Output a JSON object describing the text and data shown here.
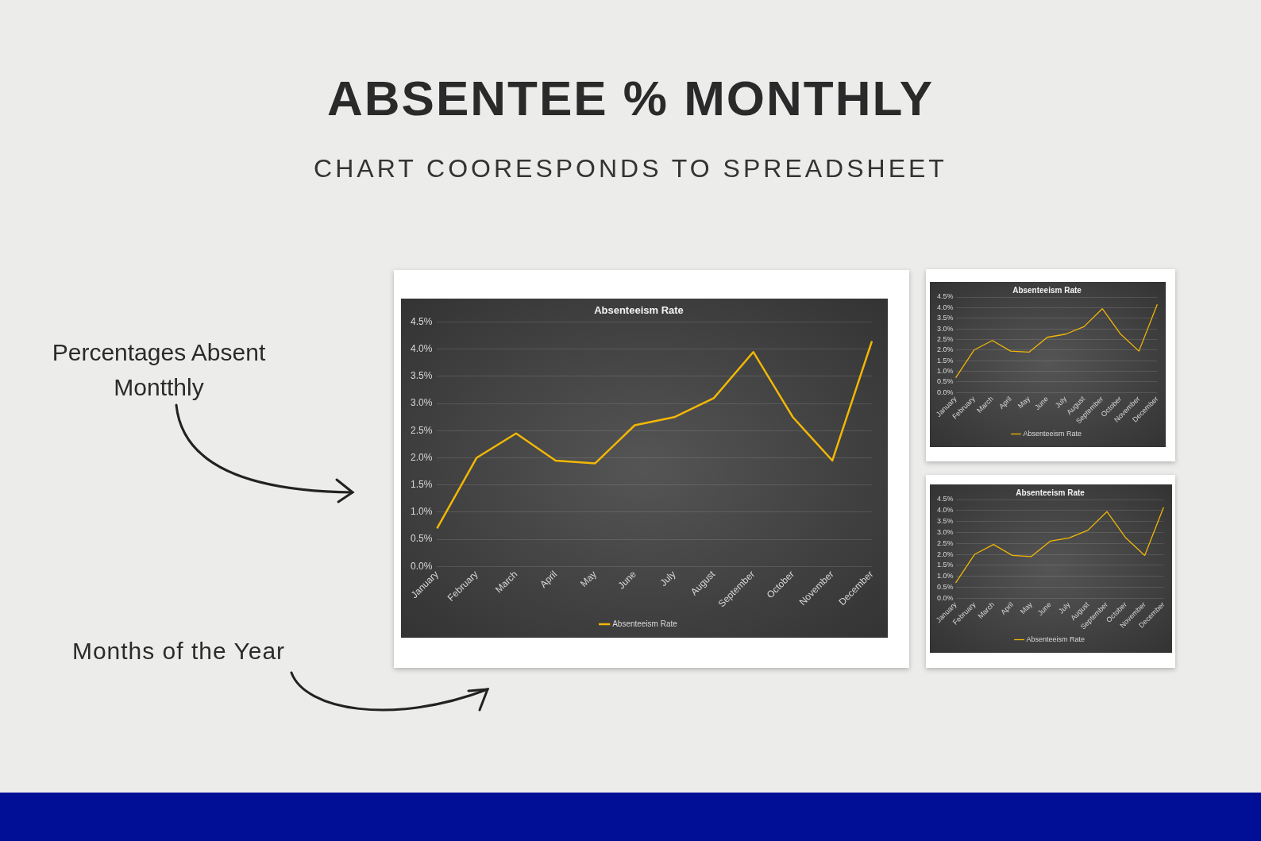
{
  "chart_data": [
    {
      "type": "line",
      "title": "Absenteeism Rate",
      "categories": [
        "January",
        "February",
        "March",
        "April",
        "May",
        "June",
        "July",
        "August",
        "September",
        "October",
        "November",
        "December"
      ],
      "series": [
        {
          "name": "Absenteeism Rate",
          "color": "#f2b705",
          "values": [
            0.7,
            2.0,
            2.45,
            1.95,
            1.9,
            2.6,
            2.75,
            3.1,
            3.95,
            2.75,
            1.95,
            4.15
          ]
        }
      ],
      "ylim": [
        0,
        4.5
      ],
      "yticks": [
        {
          "value": 0,
          "label": "0.0%"
        },
        {
          "value": 0.5,
          "label": "0.5%"
        },
        {
          "value": 1,
          "label": "1.0%"
        },
        {
          "value": 1.5,
          "label": "1.5%"
        },
        {
          "value": 2,
          "label": "2.0%"
        },
        {
          "value": 2.5,
          "label": "2.5%"
        },
        {
          "value": 3,
          "label": "3.0%"
        },
        {
          "value": 3.5,
          "label": "3.5%"
        },
        {
          "value": 4,
          "label": "4.0%"
        },
        {
          "value": 4.5,
          "label": "4.5%"
        }
      ],
      "grid": "y",
      "legend": "bottom",
      "marker": "none",
      "annotations": [
        "ABSENTEE % MONTHLY",
        "CHART COORESPONDS TO SPREADSHEET",
        "Percentages Absent Montthly",
        "Months of the Year"
      ]
    },
    {
      "type": "line",
      "title": "Absenteeism Rate",
      "categories": [
        "January",
        "February",
        "March",
        "April",
        "May",
        "June",
        "July",
        "August",
        "September",
        "October",
        "November",
        "December"
      ],
      "series": [
        {
          "name": "Absenteeism Rate",
          "color": "#f2b705",
          "values": [
            0.7,
            2.0,
            2.45,
            1.95,
            1.9,
            2.6,
            2.75,
            3.1,
            3.95,
            2.75,
            1.95,
            4.15
          ]
        }
      ],
      "ylim": [
        0,
        4.5
      ],
      "yticks": [
        {
          "value": 0,
          "label": "0.0%"
        },
        {
          "value": 0.5,
          "label": "0.5%"
        },
        {
          "value": 1,
          "label": "1.0%"
        },
        {
          "value": 1.5,
          "label": "1.5%"
        },
        {
          "value": 2,
          "label": "2.0%"
        },
        {
          "value": 2.5,
          "label": "2.5%"
        },
        {
          "value": 3,
          "label": "3.0%"
        },
        {
          "value": 3.5,
          "label": "3.5%"
        },
        {
          "value": 4,
          "label": "4.0%"
        },
        {
          "value": 4.5,
          "label": "4.5%"
        }
      ],
      "grid": "y",
      "legend": "bottom",
      "marker": "none"
    },
    {
      "type": "line",
      "title": "Absenteeism Rate",
      "categories": [
        "January",
        "February",
        "March",
        "April",
        "May",
        "June",
        "July",
        "August",
        "September",
        "October",
        "November",
        "December"
      ],
      "series": [
        {
          "name": "Absenteeism Rate",
          "color": "#f2b705",
          "values": [
            0.7,
            2.0,
            2.45,
            1.95,
            1.9,
            2.6,
            2.75,
            3.1,
            3.95,
            2.75,
            1.95,
            4.15
          ]
        }
      ],
      "ylim": [
        0,
        4.5
      ],
      "yticks": [
        {
          "value": 0,
          "label": "0.0%"
        },
        {
          "value": 0.5,
          "label": "0.5%"
        },
        {
          "value": 1,
          "label": "1.0%"
        },
        {
          "value": 1.5,
          "label": "1.5%"
        },
        {
          "value": 2,
          "label": "2.0%"
        },
        {
          "value": 2.5,
          "label": "2.5%"
        },
        {
          "value": 3,
          "label": "3.0%"
        },
        {
          "value": 3.5,
          "label": "3.5%"
        },
        {
          "value": 4,
          "label": "4.0%"
        },
        {
          "value": 4.5,
          "label": "4.5%"
        }
      ],
      "grid": "y",
      "legend": "bottom",
      "marker": "none"
    }
  ]
}
